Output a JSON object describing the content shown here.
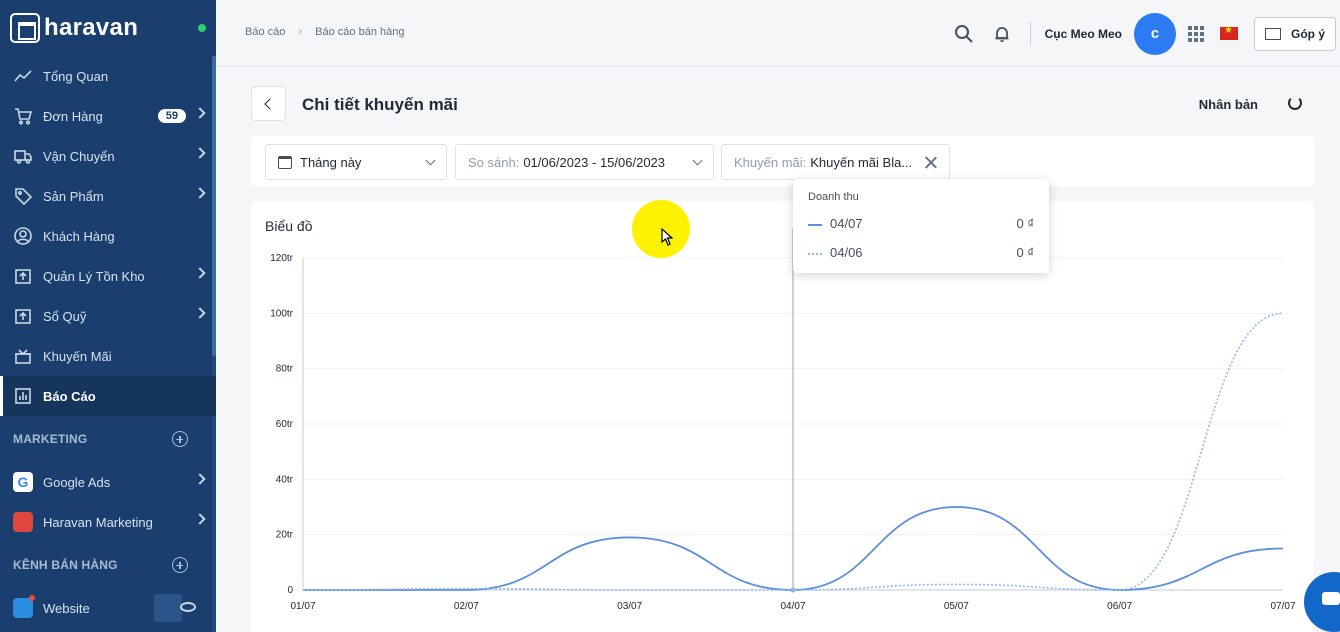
{
  "app": {
    "logo_text": "haravan"
  },
  "sidebar": {
    "items": [
      {
        "label": "Tổng Quan",
        "icon": "trend-icon",
        "chevron": false
      },
      {
        "label": "Đơn Hàng",
        "icon": "cart-icon",
        "badge": "59",
        "chevron": true
      },
      {
        "label": "Vận Chuyển",
        "icon": "truck-icon",
        "chevron": true
      },
      {
        "label": "Sản Phẩm",
        "icon": "tag-icon",
        "chevron": true
      },
      {
        "label": "Khách Hàng",
        "icon": "user-icon",
        "chevron": false
      },
      {
        "label": "Quản Lý Tồn Kho",
        "icon": "inventory-icon",
        "chevron": true
      },
      {
        "label": "Sổ Quỹ",
        "icon": "cashbook-icon",
        "chevron": true
      },
      {
        "label": "Khuyến Mãi",
        "icon": "gift-icon",
        "chevron": false
      },
      {
        "label": "Báo Cáo",
        "icon": "report-icon",
        "chevron": false,
        "active": true
      }
    ],
    "marketing_section": "MARKETING",
    "marketing_items": [
      {
        "label": "Google Ads",
        "icon": "google-icon"
      },
      {
        "label": "Haravan Marketing",
        "icon": "haravan-marketing-icon"
      }
    ],
    "channels_section": "KÊNH BÁN HÀNG",
    "channel_items": [
      {
        "label": "Website",
        "icon": "website-icon"
      }
    ]
  },
  "topbar": {
    "breadcrumb": [
      "Báo cáo",
      "Báo cáo bán hàng"
    ],
    "breadcrumb_sep": "›",
    "user_name": "Cục Meo Meo",
    "avatar_initial": "c",
    "feedback_label": "Góp ý"
  },
  "page": {
    "title": "Chi tiết khuyến mãi",
    "duplicate_label": "Nhân bản"
  },
  "filters": {
    "period": "Tháng này",
    "compare_label": "So sánh:",
    "compare_value": "01/06/2023 - 15/06/2023",
    "promo_label": "Khuyến mãi:",
    "promo_value": "Khuyến mãi Bla..."
  },
  "chart_card": {
    "title": "Biểu đồ"
  },
  "tooltip": {
    "title": "Doanh thu",
    "rows": [
      {
        "date": "04/07",
        "value": "0 ₫",
        "style": "solid"
      },
      {
        "date": "04/06",
        "value": "0 ₫",
        "style": "dotted"
      }
    ]
  },
  "colors": {
    "sidebar": "#1a3f6e",
    "current": "#5b8fdc",
    "compare": "#8fb9ef",
    "accent": "#2c7bf2"
  },
  "chart_data": {
    "type": "line",
    "categories": [
      "01/07",
      "02/07",
      "03/07",
      "04/07",
      "05/07",
      "06/07",
      "07/07"
    ],
    "y_ticks": [
      "0",
      "20tr",
      "40tr",
      "60tr",
      "80tr",
      "100tr",
      "120tr"
    ],
    "ylim": [
      0,
      120
    ],
    "series": [
      {
        "values": [
          0,
          0,
          19,
          0,
          30,
          0,
          15
        ],
        "style": "solid"
      },
      {
        "values": [
          0,
          0.5,
          0,
          0,
          2,
          0,
          100
        ],
        "style": "dotted"
      }
    ],
    "hover_index": 3
  }
}
